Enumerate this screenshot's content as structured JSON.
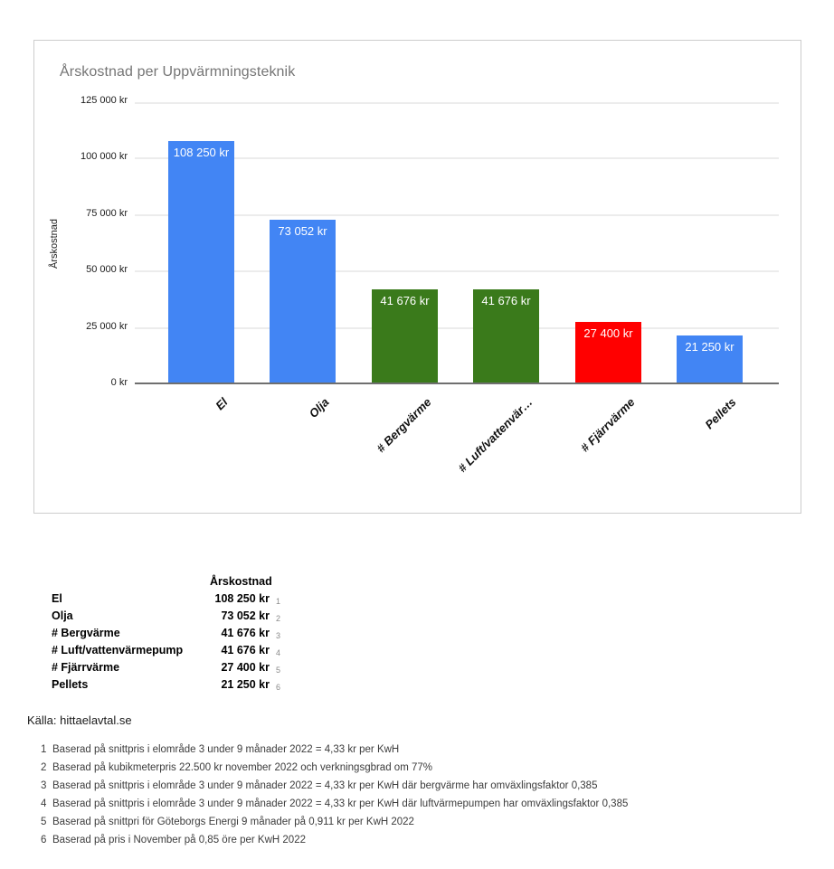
{
  "chart_data": {
    "type": "bar",
    "title": "Årskostnad per Uppvärmningsteknik",
    "categories": [
      "El",
      "Olja",
      "# Bergvärme",
      "# Luft/vattenvärmepump",
      "# Fjärrvärme",
      "Pellets"
    ],
    "x_tick_labels": [
      "El",
      "Olja",
      "# Bergvärme",
      "# Luft/vattenvär…",
      "# Fjärrvärme",
      "Pellets"
    ],
    "values": [
      108250,
      73052,
      41676,
      41676,
      27400,
      21250
    ],
    "bar_labels": [
      "108 250 kr",
      "73 052 kr",
      "41 676 kr",
      "41 676 kr",
      "27 400 kr",
      "21 250 kr"
    ],
    "bar_colors": [
      "#4285f4",
      "#4285f4",
      "#3a7a1b",
      "#3a7a1b",
      "#ff0000",
      "#4285f4"
    ],
    "xlabel": "",
    "ylabel": "Årskostnad",
    "ylim": [
      0,
      125000
    ],
    "y_ticks": [
      {
        "value": 125000,
        "label": "125 000 kr"
      },
      {
        "value": 100000,
        "label": "100 000 kr"
      },
      {
        "value": 75000,
        "label": "75 000 kr"
      },
      {
        "value": 50000,
        "label": "50 000 kr"
      },
      {
        "value": 25000,
        "label": "25 000 kr"
      },
      {
        "value": 0,
        "label": "0 kr"
      }
    ],
    "grid": true,
    "legend": "none",
    "bar_label_color": "#ffffff",
    "title_color": "#757575"
  },
  "table": {
    "header": "Årskostnad",
    "rows": [
      {
        "label": "El",
        "value": "108 250 kr",
        "footnote": "1"
      },
      {
        "label": "Olja",
        "value": "73 052 kr",
        "footnote": "2"
      },
      {
        "label": "# Bergvärme",
        "value": "41 676 kr",
        "footnote": "3"
      },
      {
        "label": "# Luft/vattenvärmepump",
        "value": "41 676 kr",
        "footnote": "4"
      },
      {
        "label": "# Fjärrvärme",
        "value": "27 400 kr",
        "footnote": "5"
      },
      {
        "label": "Pellets",
        "value": "21 250 kr",
        "footnote": "6"
      }
    ]
  },
  "source_label": "Källa: hittaelavtal.se",
  "footnotes": [
    {
      "num": "1",
      "text": "Baserad på snittpris i elområde 3 under 9 månader 2022 = 4,33 kr per KwH"
    },
    {
      "num": "2",
      "text": "Baserad på kubikmeterpris 22.500 kr november 2022 och verkningsgbrad om 77%"
    },
    {
      "num": "3",
      "text": "Baserad på snittpris i elområde 3 under 9 månader 2022 = 4,33 kr per KwH där bergvärme har omväxlingsfaktor 0,385"
    },
    {
      "num": "4",
      "text": "Baserad på snittpris i elområde 3 under 9 månader 2022 = 4,33 kr per KwH där luftvärmepumpen har omväxlingsfaktor 0,385"
    },
    {
      "num": "5",
      "text": "Baserad på snittpri för Göteborgs Energi 9 månader på 0,911 kr per KwH 2022"
    },
    {
      "num": "6",
      "text": "Baserad på pris i November på 0,85 öre per KwH 2022"
    }
  ]
}
